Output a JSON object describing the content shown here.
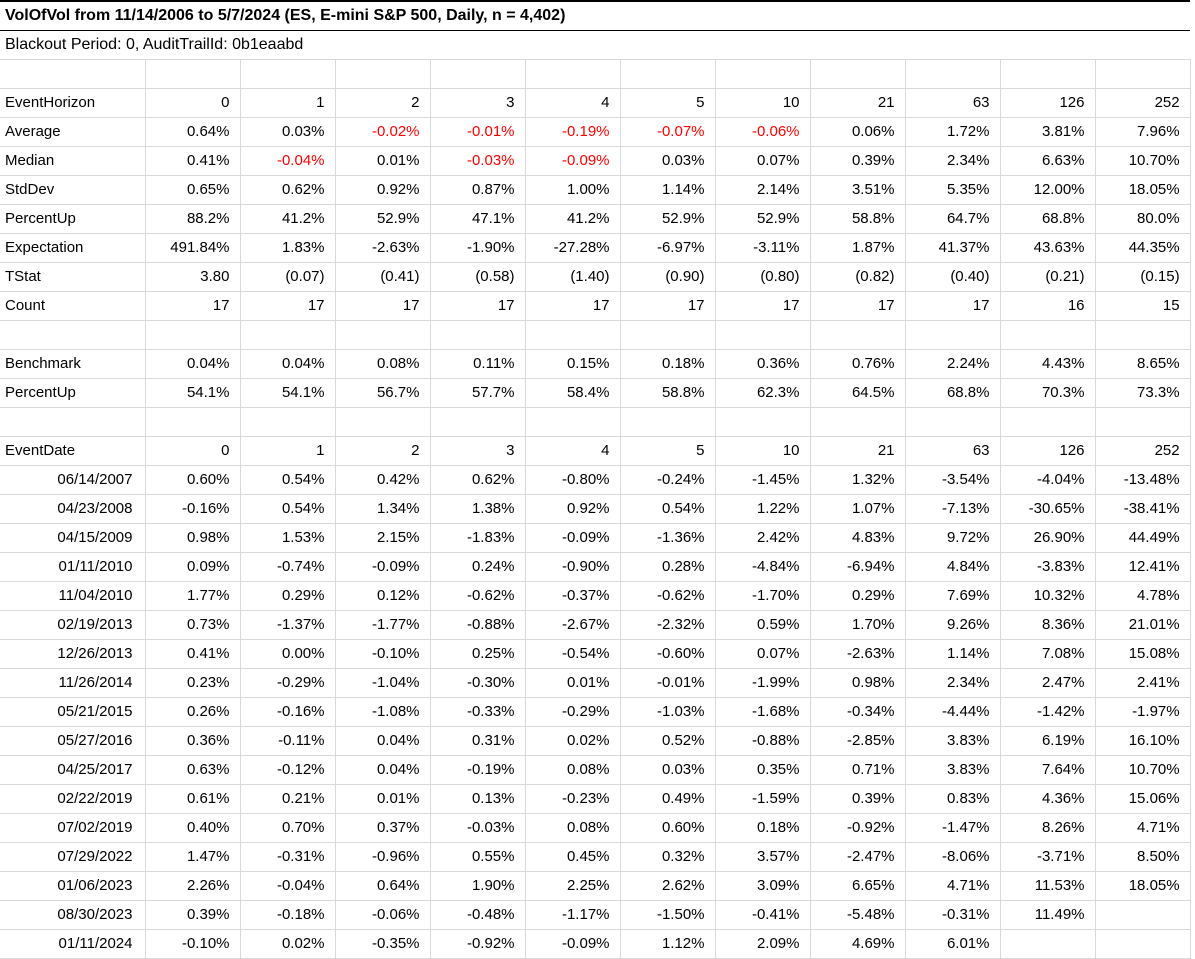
{
  "title": "VolOfVol from 11/14/2006 to 5/7/2024 (ES, E-mini S&P 500, Daily, n = 4,402)",
  "subtitle": "Blackout Period: 0, AuditTrailId: 0b1eaabd",
  "horizons": [
    "0",
    "1",
    "2",
    "3",
    "4",
    "5",
    "10",
    "21",
    "63",
    "126",
    "252"
  ],
  "summary": {
    "header_label": "EventHorizon",
    "rows": [
      {
        "label": "Average",
        "red_negatives": true,
        "values": [
          "0.64%",
          "0.03%",
          "-0.02%",
          "-0.01%",
          "-0.19%",
          "-0.07%",
          "-0.06%",
          "0.06%",
          "1.72%",
          "3.81%",
          "7.96%"
        ]
      },
      {
        "label": "Median",
        "red_negatives": true,
        "values": [
          "0.41%",
          "-0.04%",
          "0.01%",
          "-0.03%",
          "-0.09%",
          "0.03%",
          "0.07%",
          "0.39%",
          "2.34%",
          "6.63%",
          "10.70%"
        ]
      },
      {
        "label": "StdDev",
        "red_negatives": false,
        "values": [
          "0.65%",
          "0.62%",
          "0.92%",
          "0.87%",
          "1.00%",
          "1.14%",
          "2.14%",
          "3.51%",
          "5.35%",
          "12.00%",
          "18.05%"
        ]
      },
      {
        "label": "PercentUp",
        "red_negatives": false,
        "values": [
          "88.2%",
          "41.2%",
          "52.9%",
          "47.1%",
          "41.2%",
          "52.9%",
          "52.9%",
          "58.8%",
          "64.7%",
          "68.8%",
          "80.0%"
        ]
      },
      {
        "label": "Expectation",
        "red_negatives": false,
        "values": [
          "491.84%",
          "1.83%",
          "-2.63%",
          "-1.90%",
          "-27.28%",
          "-6.97%",
          "-3.11%",
          "1.87%",
          "41.37%",
          "43.63%",
          "44.35%"
        ]
      },
      {
        "label": "TStat",
        "red_negatives": false,
        "values": [
          "3.80",
          "(0.07)",
          "(0.41)",
          "(0.58)",
          "(1.40)",
          "(0.90)",
          "(0.80)",
          "(0.82)",
          "(0.40)",
          "(0.21)",
          "(0.15)"
        ]
      },
      {
        "label": "Count",
        "red_negatives": false,
        "values": [
          "17",
          "17",
          "17",
          "17",
          "17",
          "17",
          "17",
          "17",
          "17",
          "16",
          "15"
        ]
      }
    ]
  },
  "benchmark": {
    "rows": [
      {
        "label": "Benchmark",
        "red_negatives": false,
        "values": [
          "0.04%",
          "0.04%",
          "0.08%",
          "0.11%",
          "0.15%",
          "0.18%",
          "0.36%",
          "0.76%",
          "2.24%",
          "4.43%",
          "8.65%"
        ]
      },
      {
        "label": "PercentUp",
        "red_negatives": false,
        "values": [
          "54.1%",
          "54.1%",
          "56.7%",
          "57.7%",
          "58.4%",
          "58.8%",
          "62.3%",
          "64.5%",
          "68.8%",
          "70.3%",
          "73.3%"
        ]
      }
    ]
  },
  "events": {
    "header_label": "EventDate",
    "rows": [
      {
        "label": "06/14/2007",
        "values": [
          "0.60%",
          "0.54%",
          "0.42%",
          "0.62%",
          "-0.80%",
          "-0.24%",
          "-1.45%",
          "1.32%",
          "-3.54%",
          "-4.04%",
          "-13.48%"
        ]
      },
      {
        "label": "04/23/2008",
        "values": [
          "-0.16%",
          "0.54%",
          "1.34%",
          "1.38%",
          "0.92%",
          "0.54%",
          "1.22%",
          "1.07%",
          "-7.13%",
          "-30.65%",
          "-38.41%"
        ]
      },
      {
        "label": "04/15/2009",
        "values": [
          "0.98%",
          "1.53%",
          "2.15%",
          "-1.83%",
          "-0.09%",
          "-1.36%",
          "2.42%",
          "4.83%",
          "9.72%",
          "26.90%",
          "44.49%"
        ]
      },
      {
        "label": "01/11/2010",
        "values": [
          "0.09%",
          "-0.74%",
          "-0.09%",
          "0.24%",
          "-0.90%",
          "0.28%",
          "-4.84%",
          "-6.94%",
          "4.84%",
          "-3.83%",
          "12.41%"
        ]
      },
      {
        "label": "11/04/2010",
        "values": [
          "1.77%",
          "0.29%",
          "0.12%",
          "-0.62%",
          "-0.37%",
          "-0.62%",
          "-1.70%",
          "0.29%",
          "7.69%",
          "10.32%",
          "4.78%"
        ]
      },
      {
        "label": "02/19/2013",
        "values": [
          "0.73%",
          "-1.37%",
          "-1.77%",
          "-0.88%",
          "-2.67%",
          "-2.32%",
          "0.59%",
          "1.70%",
          "9.26%",
          "8.36%",
          "21.01%"
        ]
      },
      {
        "label": "12/26/2013",
        "values": [
          "0.41%",
          "0.00%",
          "-0.10%",
          "0.25%",
          "-0.54%",
          "-0.60%",
          "0.07%",
          "-2.63%",
          "1.14%",
          "7.08%",
          "15.08%"
        ]
      },
      {
        "label": "11/26/2014",
        "values": [
          "0.23%",
          "-0.29%",
          "-1.04%",
          "-0.30%",
          "0.01%",
          "-0.01%",
          "-1.99%",
          "0.98%",
          "2.34%",
          "2.47%",
          "2.41%"
        ]
      },
      {
        "label": "05/21/2015",
        "values": [
          "0.26%",
          "-0.16%",
          "-1.08%",
          "-0.33%",
          "-0.29%",
          "-1.03%",
          "-1.68%",
          "-0.34%",
          "-4.44%",
          "-1.42%",
          "-1.97%"
        ]
      },
      {
        "label": "05/27/2016",
        "values": [
          "0.36%",
          "-0.11%",
          "0.04%",
          "0.31%",
          "0.02%",
          "0.52%",
          "-0.88%",
          "-2.85%",
          "3.83%",
          "6.19%",
          "16.10%"
        ]
      },
      {
        "label": "04/25/2017",
        "values": [
          "0.63%",
          "-0.12%",
          "0.04%",
          "-0.19%",
          "0.08%",
          "0.03%",
          "0.35%",
          "0.71%",
          "3.83%",
          "7.64%",
          "10.70%"
        ]
      },
      {
        "label": "02/22/2019",
        "values": [
          "0.61%",
          "0.21%",
          "0.01%",
          "0.13%",
          "-0.23%",
          "0.49%",
          "-1.59%",
          "0.39%",
          "0.83%",
          "4.36%",
          "15.06%"
        ]
      },
      {
        "label": "07/02/2019",
        "values": [
          "0.40%",
          "0.70%",
          "0.37%",
          "-0.03%",
          "0.08%",
          "0.60%",
          "0.18%",
          "-0.92%",
          "-1.47%",
          "8.26%",
          "4.71%"
        ]
      },
      {
        "label": "07/29/2022",
        "values": [
          "1.47%",
          "-0.31%",
          "-0.96%",
          "0.55%",
          "0.45%",
          "0.32%",
          "3.57%",
          "-2.47%",
          "-8.06%",
          "-3.71%",
          "8.50%"
        ]
      },
      {
        "label": "01/06/2023",
        "values": [
          "2.26%",
          "-0.04%",
          "0.64%",
          "1.90%",
          "2.25%",
          "2.62%",
          "3.09%",
          "6.65%",
          "4.71%",
          "11.53%",
          "18.05%"
        ]
      },
      {
        "label": "08/30/2023",
        "values": [
          "0.39%",
          "-0.18%",
          "-0.06%",
          "-0.48%",
          "-1.17%",
          "-1.50%",
          "-0.41%",
          "-5.48%",
          "-0.31%",
          "11.49%",
          ""
        ]
      },
      {
        "label": "01/11/2024",
        "values": [
          "-0.10%",
          "0.02%",
          "-0.35%",
          "-0.92%",
          "-0.09%",
          "1.12%",
          "2.09%",
          "4.69%",
          "6.01%",
          "",
          ""
        ]
      }
    ]
  },
  "colors": {
    "negative_red": "#ff0000",
    "gridline": "#d9d9d9",
    "title_border": "#000000"
  }
}
